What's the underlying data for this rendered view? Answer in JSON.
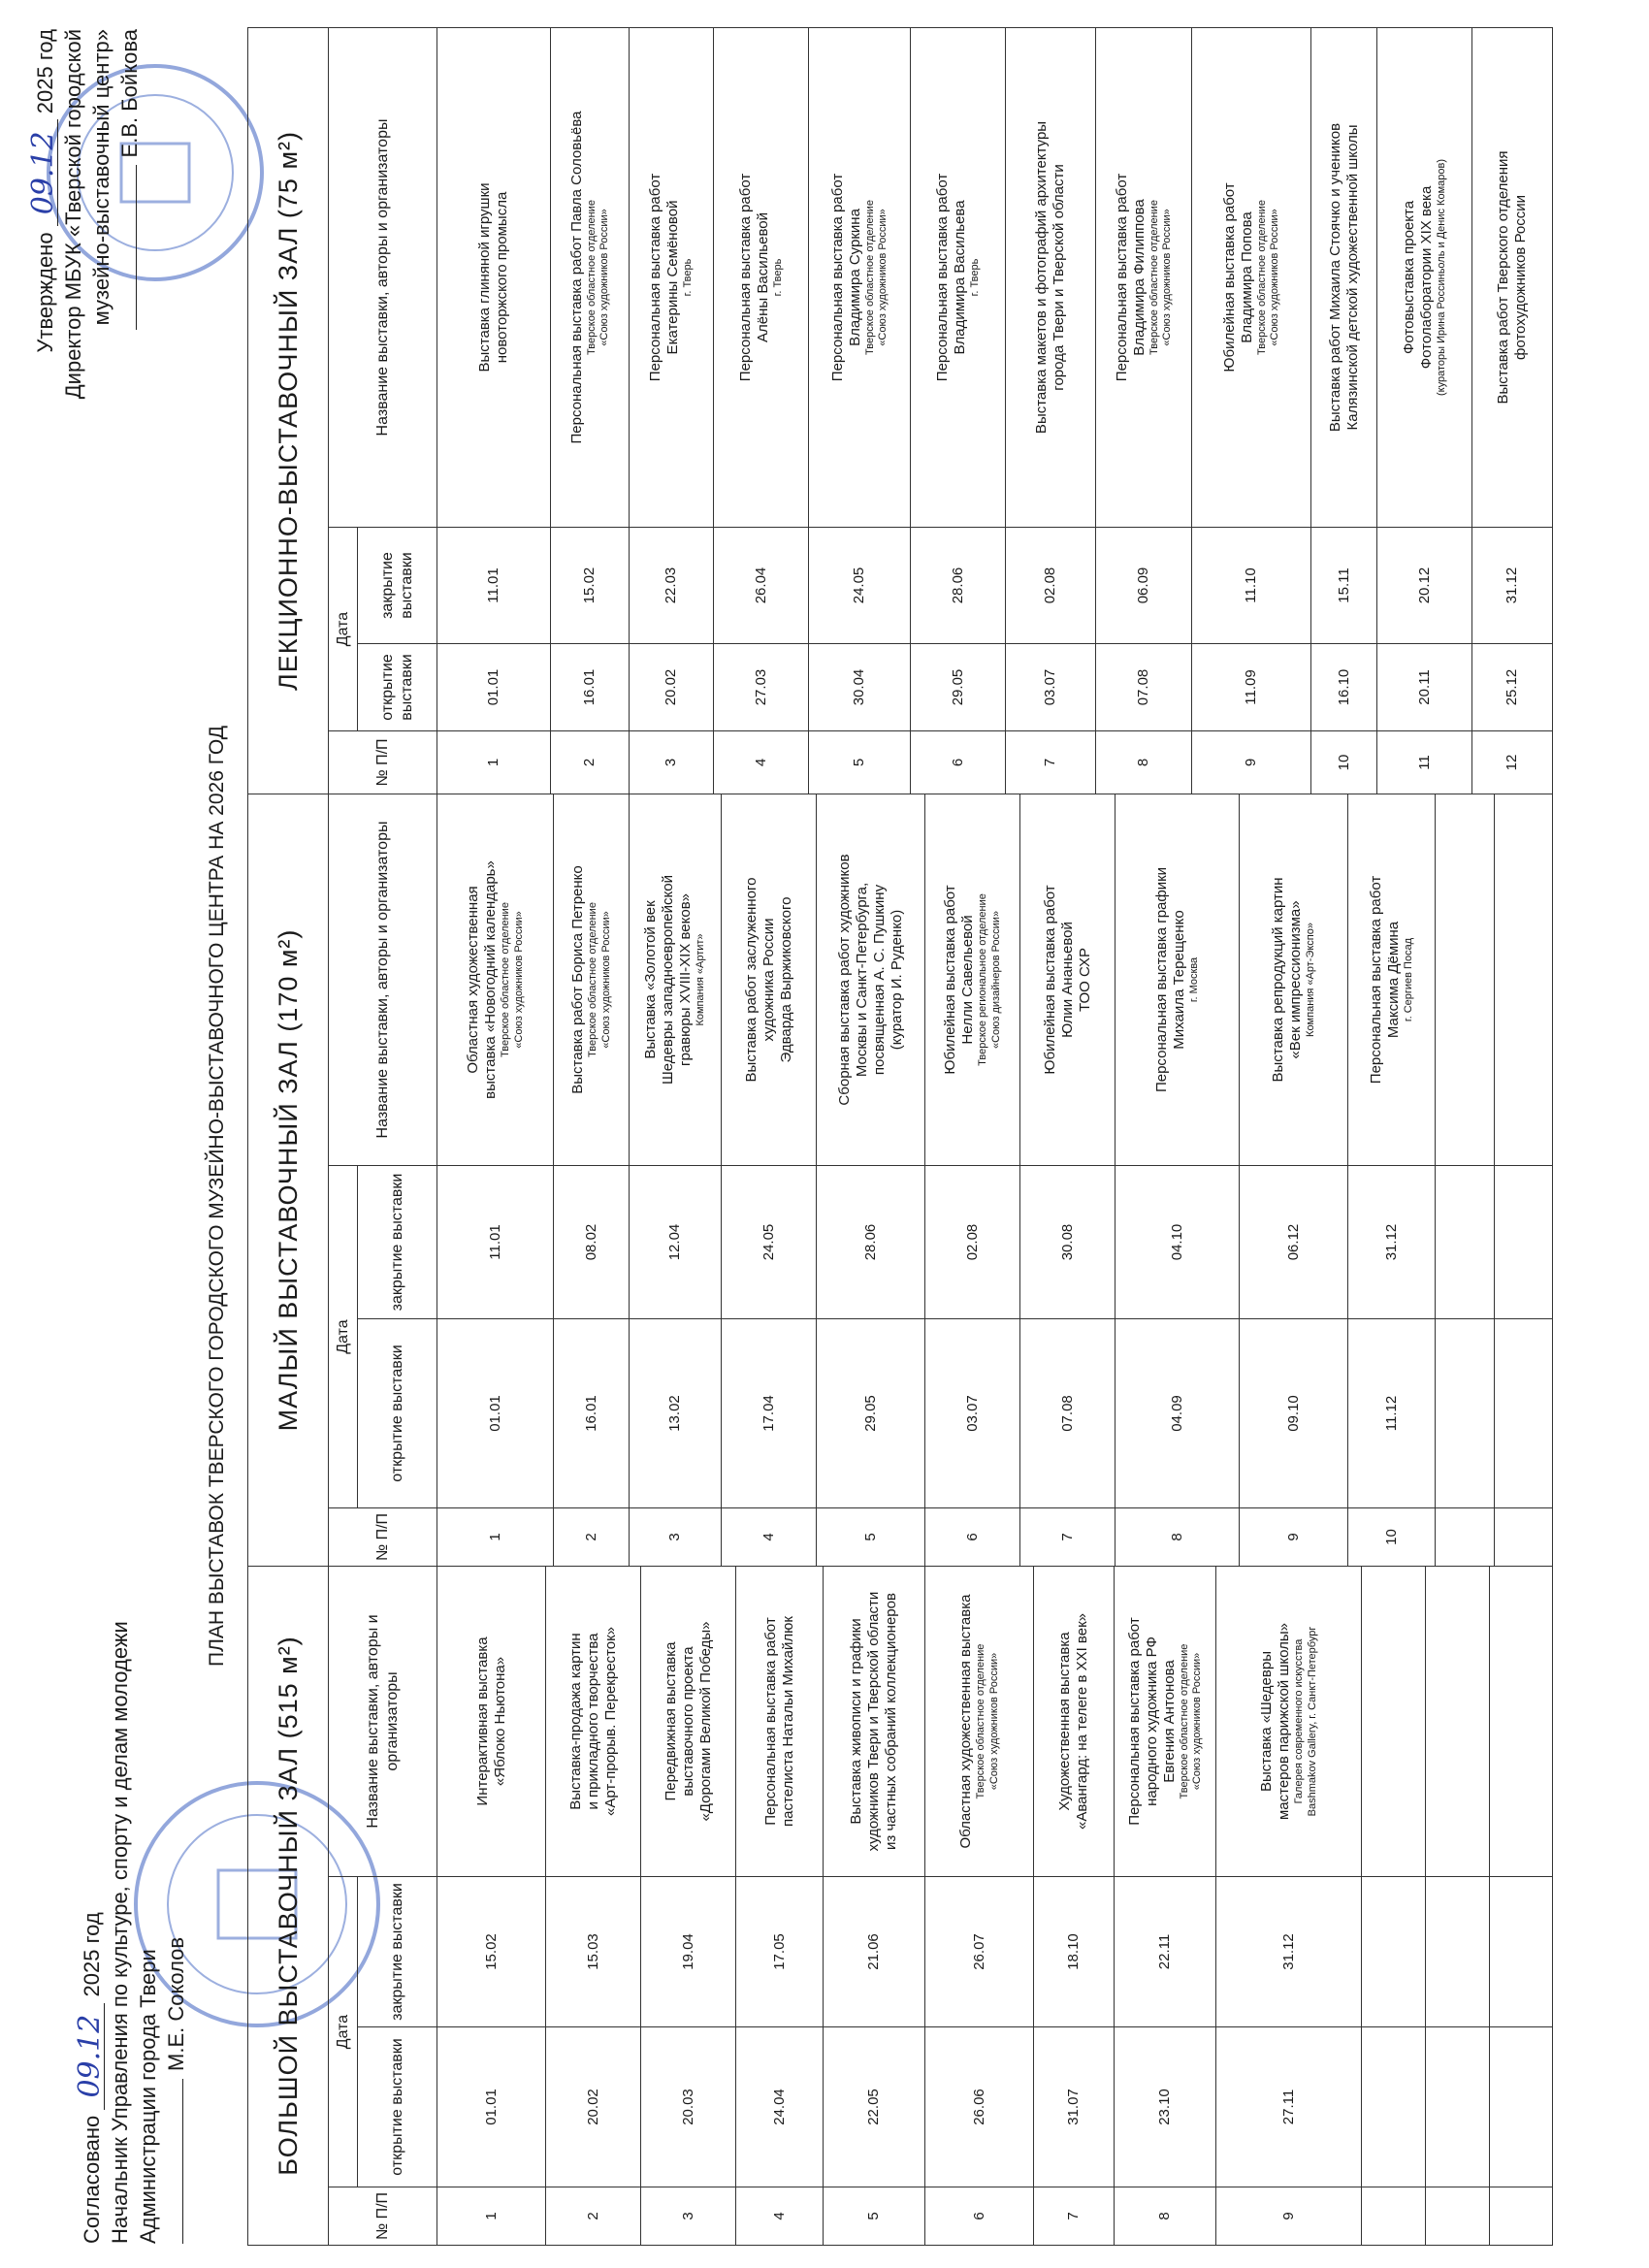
{
  "approval_left": {
    "label": "Согласовано",
    "date": "09.12",
    "year": "2025 год",
    "position": "Начальник Управления по культуре, спорту и делам молодежи",
    "org": "Администрации города Твери",
    "name": "М.Е. Соколов"
  },
  "approval_right": {
    "label": "Утверждено",
    "date": "09.12",
    "year": "2025 год",
    "position": "Директор МБУК «Тверской городской",
    "org": "музейно-выставочный центр»",
    "name": "Е.В. Бойкова"
  },
  "title": "ПЛАН ВЫСТАВОК ТВЕРСКОГО ГОРОДСКОГО МУЗЕЙНО-ВЫСТАВОЧНОГО ЦЕНТРА НА 2026 ГОД",
  "columns": {
    "num": "№ П/П",
    "date": "Дата",
    "open": "открытие выставки",
    "close": "закрытие выставки",
    "name": "Название выставки, авторы и организаторы"
  },
  "halls": [
    {
      "name": "БОЛЬШОЙ ВЫСТАВОЧНЫЙ ЗАЛ (515 м²)",
      "rows": [
        {
          "num": 1,
          "open": "01.01",
          "close": "15.02",
          "title": [
            "Интерактивная выставка",
            "«Яблоко Ньютона»"
          ],
          "notes": []
        },
        {
          "num": 2,
          "open": "20.02",
          "close": "15.03",
          "title": [
            "Выставка-продажа картин",
            "и прикладного творчества",
            "«Арт-прорыв. Перекресток»"
          ],
          "notes": []
        },
        {
          "num": 3,
          "open": "20.03",
          "close": "19.04",
          "title": [
            "Передвижная выставка",
            "выставочного проекта",
            "«Дорогами Великой Победы»"
          ],
          "notes": []
        },
        {
          "num": 4,
          "open": "24.04",
          "close": "17.05",
          "title": [
            "Персональная выставка работ",
            "пастелиста Натальи Михайлюк"
          ],
          "notes": []
        },
        {
          "num": 5,
          "open": "22.05",
          "close": "21.06",
          "title": [
            "Выставка живописи и графики",
            "художников Твери и Тверской области",
            "из частных собраний коллекционеров"
          ],
          "notes": []
        },
        {
          "num": 6,
          "open": "26.06",
          "close": "26.07",
          "title": [
            "Областная художественная выставка"
          ],
          "notes": [
            "Тверское областное отделение",
            "«Союз художников России»"
          ]
        },
        {
          "num": 7,
          "open": "31.07",
          "close": "18.10",
          "title": [
            "Художественная выставка",
            "«Авангард: на телеге в XXI век»"
          ],
          "notes": []
        },
        {
          "num": 8,
          "open": "23.10",
          "close": "22.11",
          "title": [
            "Персональная выставка работ",
            "народного художника РФ",
            "Евгения Антонова"
          ],
          "notes": [
            "Тверское областное отделение",
            "«Союз художников России»"
          ]
        },
        {
          "num": 9,
          "open": "27.11",
          "close": "31.12",
          "title": [
            "Выставка «Шедевры",
            "мастеров парижской школы»"
          ],
          "notes": [
            "Галерея современного искусства",
            "Bashmakov Gallery, г. Санкт-Петербург"
          ]
        }
      ]
    },
    {
      "name": "МАЛЫЙ ВЫСТАВОЧНЫЙ ЗАЛ (170 м²)",
      "rows": [
        {
          "num": 1,
          "open": "01.01",
          "close": "11.01",
          "title": [
            "Областная художественная",
            "выставка «Новогодний календарь»"
          ],
          "notes": [
            "Тверское областное отделение",
            "«Союз художников России»"
          ]
        },
        {
          "num": 2,
          "open": "16.01",
          "close": "08.02",
          "title": [
            "Выставка работ Бориса Петренко"
          ],
          "notes": [
            "Тверское областное отделение",
            "«Союз художников России»"
          ]
        },
        {
          "num": 3,
          "open": "13.02",
          "close": "12.04",
          "title": [
            "Выставка «Золотой век",
            "Шедевры западноевропейской",
            "гравюры XVIII-XIX веков»"
          ],
          "notes": [
            "Компания «Артит»"
          ]
        },
        {
          "num": 4,
          "open": "17.04",
          "close": "24.05",
          "title": [
            "Выставка работ заслуженного",
            "художника России",
            "Эдварда Выржиковского"
          ],
          "notes": []
        },
        {
          "num": 5,
          "open": "29.05",
          "close": "28.06",
          "title": [
            "Сборная выставка работ художников",
            "Москвы и Санкт-Петербурга,",
            "посвященная А. С. Пушкину",
            "(куратор И. Руденко)"
          ],
          "notes": []
        },
        {
          "num": 6,
          "open": "03.07",
          "close": "02.08",
          "title": [
            "Юбилейная выставка работ",
            "Нелли Савельевой"
          ],
          "notes": [
            "Тверское региональное отделение",
            "«Союз дизайнеров России»"
          ]
        },
        {
          "num": 7,
          "open": "07.08",
          "close": "30.08",
          "title": [
            "Юбилейная выставка работ",
            "Юлии Ананьевой",
            "ТОО СХР"
          ],
          "notes": []
        },
        {
          "num": 8,
          "open": "04.09",
          "close": "04.10",
          "title": [
            "Персональная выставка графики",
            "Михаила Терещенко"
          ],
          "notes": [
            "г. Москва"
          ]
        },
        {
          "num": 9,
          "open": "09.10",
          "close": "06.12",
          "title": [
            "Выставка репродукций картин",
            "«Век импрессионизма»"
          ],
          "notes": [
            "Компания «Арт-Экспо»"
          ]
        },
        {
          "num": 10,
          "open": "11.12",
          "close": "31.12",
          "title": [
            "Персональная выставка работ",
            "Максима Дёмина"
          ],
          "notes": [
            "г. Сергиев Посад"
          ]
        }
      ]
    },
    {
      "name": "ЛЕКЦИОННО-ВЫСТАВОЧНЫЙ ЗАЛ (75 м²)",
      "rows": [
        {
          "num": 1,
          "open": "01.01",
          "close": "11.01",
          "title": [
            "Выставка глиняной игрушки",
            "новоторжского промысла"
          ],
          "notes": []
        },
        {
          "num": 2,
          "open": "16.01",
          "close": "15.02",
          "title": [
            "Персональная выставка работ Павла Соловьёва"
          ],
          "notes": [
            "Тверское областное отделение",
            "«Союз художников России»"
          ]
        },
        {
          "num": 3,
          "open": "20.02",
          "close": "22.03",
          "title": [
            "Персональная выставка работ",
            "Екатерины Семёновой"
          ],
          "notes": [
            "г. Тверь"
          ]
        },
        {
          "num": 4,
          "open": "27.03",
          "close": "26.04",
          "title": [
            "Персональная выставка работ",
            "Алёны Васильевой"
          ],
          "notes": [
            "г. Тверь"
          ]
        },
        {
          "num": 5,
          "open": "30.04",
          "close": "24.05",
          "title": [
            "Персональная выставка работ",
            "Владимира Суркина"
          ],
          "notes": [
            "Тверское областное отделение",
            "«Союз художников России»"
          ]
        },
        {
          "num": 6,
          "open": "29.05",
          "close": "28.06",
          "title": [
            "Персональная выставка работ",
            "Владимира Васильева"
          ],
          "notes": [
            "г. Тверь"
          ]
        },
        {
          "num": 7,
          "open": "03.07",
          "close": "02.08",
          "title": [
            "Выставка макетов и фотографий архитектуры",
            "города Твери и Тверской области"
          ],
          "notes": []
        },
        {
          "num": 8,
          "open": "07.08",
          "close": "06.09",
          "title": [
            "Персональная выставка работ",
            "Владимира Филиппова"
          ],
          "notes": [
            "Тверское областное отделение",
            "«Союз художников России»"
          ]
        },
        {
          "num": 9,
          "open": "11.09",
          "close": "11.10",
          "title": [
            "Юбилейная выставка работ",
            "Владимира Попова"
          ],
          "notes": [
            "Тверское областное отделение",
            "«Союз художников России»"
          ]
        },
        {
          "num": 10,
          "open": "16.10",
          "close": "15.11",
          "title": [
            "Выставка работ Михаила Стоячко и учеников",
            "Калязинской детской художественной школы"
          ],
          "notes": []
        },
        {
          "num": 11,
          "open": "20.11",
          "close": "20.12",
          "title": [
            "Фотовыставка проекта",
            "Фотолаборатории XIX века"
          ],
          "notes": [
            "(кураторы Ирина Россиньоль и Денис Комаров)"
          ]
        },
        {
          "num": 12,
          "open": "25.12",
          "close": "31.12",
          "title": [
            "Выставка работ Тверского отделения",
            "фотохудожников России"
          ],
          "notes": []
        }
      ]
    }
  ]
}
